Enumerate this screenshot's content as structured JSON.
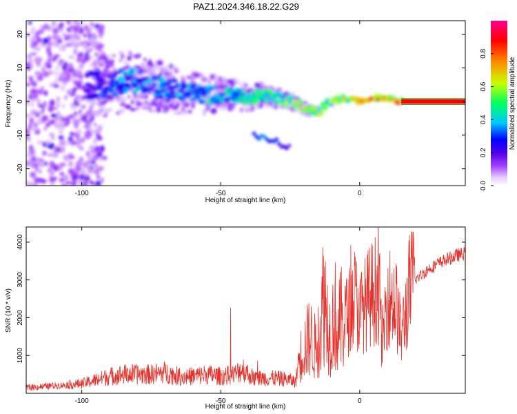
{
  "chart_data": [
    {
      "type": "heatmap",
      "title": "PAZ1.2024.346.18.22.G29",
      "xlabel": "Height of straight line (km)",
      "ylabel": "Frequency (Hz)",
      "xlim": [
        -120,
        38
      ],
      "ylim": [
        -25,
        24
      ],
      "x_ticks": [
        -100,
        -50,
        0
      ],
      "y_ticks": [
        20,
        10,
        0,
        -10,
        -20
      ],
      "colorbar": {
        "label": "Normalized spectral amplitude",
        "range": [
          0.0,
          1.0
        ],
        "ticks": [
          0.0,
          0.2,
          0.4,
          0.6,
          0.8
        ],
        "colors": [
          "#ffffff",
          "#e6ccff",
          "#a040ff",
          "#5000e6",
          "#0000ff",
          "#00c8ff",
          "#00ff60",
          "#c8ff00",
          "#ff8c00",
          "#ff0000",
          "#ff0090"
        ]
      },
      "ridge": {
        "x": [
          -100,
          -95,
          -90,
          -85,
          -80,
          -75,
          -70,
          -65,
          -60,
          -55,
          -50,
          -45,
          -40,
          -35,
          -30,
          -25,
          -20,
          -17,
          -15,
          -12,
          -10,
          -5,
          0,
          5,
          10,
          15,
          20,
          25,
          30,
          35,
          38
        ],
        "y": [
          4,
          5,
          5,
          6,
          6,
          5,
          4,
          3,
          3,
          2,
          2,
          2,
          1,
          2,
          1,
          0,
          -2,
          -3,
          -3,
          -1,
          0,
          1,
          0,
          1,
          1,
          0,
          0,
          0,
          0,
          0,
          0
        ],
        "amplitude": [
          0.2,
          0.3,
          0.35,
          0.4,
          0.4,
          0.38,
          0.4,
          0.42,
          0.4,
          0.42,
          0.45,
          0.45,
          0.5,
          0.55,
          0.55,
          0.6,
          0.65,
          0.65,
          0.65,
          0.6,
          0.65,
          0.7,
          0.8,
          0.85,
          0.85,
          0.9,
          0.95,
          0.95,
          0.95,
          0.95,
          0.95
        ]
      },
      "branch": {
        "x": [
          -38,
          -35,
          -30,
          -25
        ],
        "y": [
          -10,
          -11,
          -12,
          -14
        ],
        "amplitude": [
          0.3,
          0.3,
          0.25,
          0.2
        ]
      },
      "scatter_region": {
        "x": [
          -120,
          -92
        ],
        "y": [
          -25,
          24
        ],
        "amplitude": 0.15
      }
    },
    {
      "type": "line",
      "xlabel": "Height of straight line (km)",
      "ylabel": "SNR (10 * v/v)",
      "xlim": [
        -120,
        38
      ],
      "ylim": [
        0,
        4400
      ],
      "x_ticks": [
        -100,
        -50,
        0
      ],
      "y_ticks": [
        1000,
        2000,
        3000,
        4000
      ],
      "color": "#e8302a",
      "grid": false,
      "x": [
        -120,
        -110,
        -100,
        -95,
        -90,
        -85,
        -80,
        -75,
        -70,
        -65,
        -60,
        -55,
        -50,
        -45,
        -42,
        -40,
        -38,
        -35,
        -30,
        -25,
        -23,
        -22,
        -20,
        -18,
        -16,
        -14,
        -13,
        -12,
        -11,
        -10,
        -9,
        -8,
        -7,
        -5,
        -3,
        -2,
        0,
        3,
        5,
        7,
        8,
        10,
        13,
        15,
        18,
        20,
        25,
        30,
        35,
        38
      ],
      "y": [
        150,
        200,
        250,
        350,
        450,
        500,
        500,
        500,
        550,
        450,
        450,
        500,
        450,
        500,
        650,
        500,
        400,
        400,
        400,
        350,
        300,
        900,
        1200,
        1500,
        1200,
        1700,
        2700,
        2200,
        1600,
        1700,
        2200,
        1500,
        1900,
        2000,
        2300,
        2600,
        2100,
        2500,
        2700,
        2800,
        1300,
        2600,
        2400,
        1500,
        2800,
        3000,
        3300,
        3500,
        3650,
        3700
      ]
    }
  ]
}
